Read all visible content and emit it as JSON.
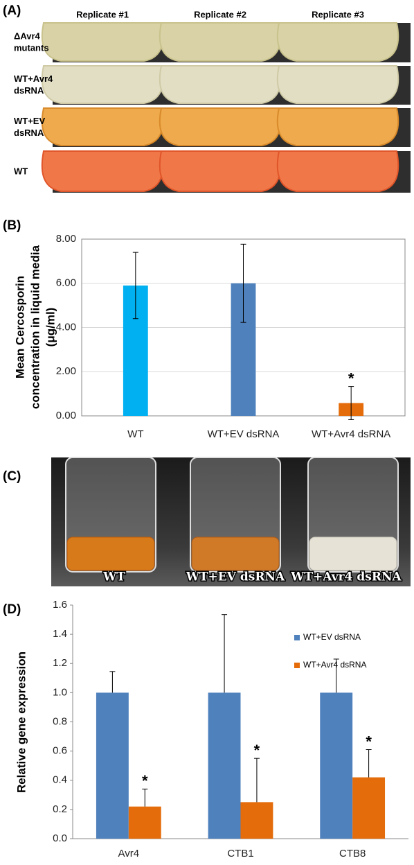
{
  "panel_labels": [
    "(A)",
    "(B)",
    "(C)",
    "(D)"
  ],
  "photo_a": {
    "columns": [
      "Replicate #1",
      "Replicate #2",
      "Replicate #3"
    ],
    "rows": [
      [
        "ΔAvr4",
        "mutants"
      ],
      [
        "WT+Avr4",
        "dsRNA"
      ],
      [
        "WT+EV",
        "dsRNA"
      ],
      [
        "WT"
      ]
    ]
  },
  "photo_c": {
    "labels": [
      "WT",
      "WT+EV dsRNA",
      "WT+Avr4 dsRNA"
    ]
  },
  "chart_data": [
    {
      "type": "bar",
      "y_label": [
        "Mean Cercosporin",
        "concentration in liquid media",
        "(μg/ml)"
      ],
      "categories": [
        "WT",
        "WT+EV dsRNA",
        "WT+Avr4 dsRNA"
      ],
      "values": [
        5.9,
        6.0,
        0.58
      ],
      "errors": [
        1.5,
        1.77,
        0.75
      ],
      "colors": [
        "#00b0f0",
        "#4f81bd",
        "#e46c0a"
      ],
      "error_direction": "both",
      "annotations": [
        {
          "text": "*",
          "category": "WT+Avr4 dsRNA"
        }
      ],
      "ylim": [
        0,
        8
      ],
      "yticks": [
        {
          "value": 0,
          "label": "0.00"
        },
        {
          "value": 2,
          "label": "2.00"
        },
        {
          "value": 4,
          "label": "4.00"
        },
        {
          "value": 6,
          "label": "6.00"
        },
        {
          "value": 8,
          "label": "8.00"
        }
      ],
      "grid": true,
      "frame": "box"
    },
    {
      "type": "bar",
      "y_label": "Relative gene expression",
      "categories": [
        "Avr4",
        "CTB1",
        "CTB8"
      ],
      "series": [
        {
          "name": "WT+EV dsRNA",
          "color": "#4f81bd",
          "values": [
            1.0,
            1.0,
            1.0
          ],
          "errors": [
            0.145,
            0.535,
            0.23
          ]
        },
        {
          "name": "WT+Avr4 dsRNA",
          "color": "#e46c0a",
          "values": [
            0.22,
            0.25,
            0.42
          ],
          "errors": [
            0.12,
            0.3,
            0.19
          ]
        }
      ],
      "error_direction": "up",
      "annotations": [
        {
          "text": "*",
          "series": "WT+Avr4 dsRNA",
          "category": "Avr4"
        },
        {
          "text": "*",
          "series": "WT+Avr4 dsRNA",
          "category": "CTB1"
        },
        {
          "text": "*",
          "series": "WT+Avr4 dsRNA",
          "category": "CTB8"
        }
      ],
      "ylim": [
        0,
        1.6
      ],
      "yticks": [
        {
          "value": 0,
          "label": "0.0"
        },
        {
          "value": 0.2,
          "label": "0.2"
        },
        {
          "value": 0.4,
          "label": "0.4"
        },
        {
          "value": 0.6,
          "label": "0.6"
        },
        {
          "value": 0.8,
          "label": "0.8"
        },
        {
          "value": 1.0,
          "label": "1.0"
        },
        {
          "value": 1.2,
          "label": "1.2"
        },
        {
          "value": 1.4,
          "label": "1.4"
        },
        {
          "value": 1.6,
          "label": "1.6"
        }
      ],
      "grid": false,
      "frame": "axes",
      "legend": "upper right"
    }
  ]
}
